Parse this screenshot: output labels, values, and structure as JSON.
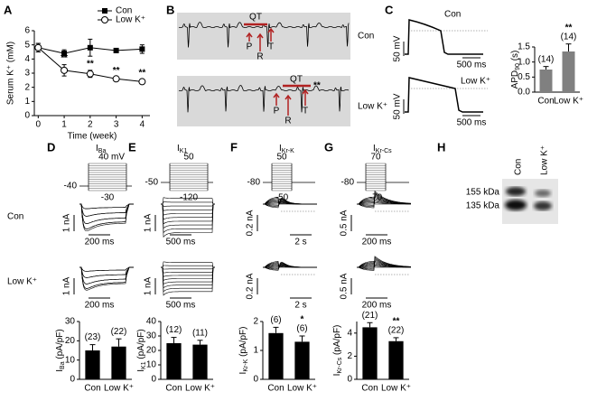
{
  "chart_data": [
    {
      "type": "line",
      "y_label": "Serum K⁺ (mM)",
      "x_label": "Time (week)",
      "x": [
        0,
        1,
        2,
        3,
        4
      ],
      "xlim": [
        -0.15,
        4.3
      ],
      "xticks": [
        0,
        1,
        2,
        3,
        4
      ],
      "ylim": [
        0,
        6
      ],
      "yticks": [
        0,
        1,
        2,
        3,
        4,
        5,
        6
      ],
      "legend": "top-right",
      "series": [
        {
          "name": "Con",
          "color": "#000000",
          "marker": "square",
          "values": [
            4.8,
            4.4,
            4.8,
            4.6,
            4.7
          ],
          "errors": [
            0.3,
            0.25,
            0.6,
            0.15,
            0.3
          ]
        },
        {
          "name": "Low K⁺",
          "color": "#000000",
          "marker": "open-circle",
          "values": [
            4.8,
            3.2,
            2.95,
            2.6,
            2.4
          ],
          "errors": [
            0.3,
            0.4,
            0.25,
            0.12,
            0.15
          ],
          "significance": [
            null,
            "**",
            "**",
            "**",
            "**"
          ]
        }
      ]
    },
    {
      "type": "bar",
      "y_label": {
        "main": "APD",
        "sub": "90",
        "unit": " (s)"
      },
      "categories": [
        "Con",
        "Low K⁺"
      ],
      "values": [
        0.75,
        1.35
      ],
      "errors": [
        0.1,
        0.25
      ],
      "n_labels": [
        "(14)",
        "(14)"
      ],
      "significance": [
        null,
        "**"
      ],
      "color": "#808080",
      "ylim": [
        0,
        1.5
      ],
      "yticks": [
        {
          "value": 0,
          "label": "0.0"
        },
        0.5,
        {
          "value": 1,
          "label": "1.0"
        },
        1.5
      ]
    },
    {
      "type": "bar",
      "y_label": {
        "main": "I",
        "sub": "Ba",
        "unit": " (pA/pF)"
      },
      "categories": [
        "Con",
        "Low K⁺"
      ],
      "values": [
        15,
        17
      ],
      "errors": [
        3,
        4
      ],
      "n_labels": [
        "(23)",
        "(22)"
      ],
      "significance": [
        null,
        null
      ],
      "color": "#000000",
      "ylim": [
        0,
        30
      ],
      "yticks": [
        0,
        10,
        20,
        30
      ]
    },
    {
      "type": "bar",
      "y_label": {
        "main": "I",
        "sub": "K1",
        "unit": " (pA/pF)"
      },
      "categories": [
        "Con",
        "Low K⁺"
      ],
      "values": [
        25,
        24
      ],
      "errors": [
        4,
        3
      ],
      "n_labels": [
        "(12)",
        "(11)"
      ],
      "significance": [
        null,
        null
      ],
      "color": "#000000",
      "ylim": [
        0,
        40
      ],
      "yticks": [
        0,
        10,
        20,
        30,
        40
      ]
    },
    {
      "type": "bar",
      "y_label": {
        "main": "I",
        "sub": "Kr-K",
        "unit": " (pA/pF)"
      },
      "categories": [
        "Con",
        "Low K⁺"
      ],
      "values": [
        1.6,
        1.3
      ],
      "errors": [
        0.2,
        0.2
      ],
      "n_labels": [
        "(6)",
        "(6)"
      ],
      "significance": [
        null,
        "*"
      ],
      "color": "#000000",
      "ylim": [
        0,
        2
      ],
      "yticks": [
        0,
        1,
        2
      ]
    },
    {
      "type": "bar",
      "y_label": {
        "main": "I",
        "sub": "Kr-Cs",
        "unit": " (pA/pF)"
      },
      "categories": [
        "Con",
        "Low K⁺"
      ],
      "values": [
        4.5,
        3.3
      ],
      "errors": [
        0.4,
        0.3
      ],
      "n_labels": [
        "(21)",
        "(22)"
      ],
      "significance": [
        null,
        "**"
      ],
      "color": "#000000",
      "ylim": [
        0,
        5
      ],
      "yticks": [
        0,
        2,
        4
      ]
    }
  ],
  "panels": {
    "A": {
      "label": "A"
    },
    "B": {
      "label": "B",
      "interval": "QT",
      "waves": [
        "P",
        "R",
        "T"
      ],
      "conditions": [
        "Con",
        "Low K⁺"
      ],
      "significance": "**"
    },
    "C": {
      "label": "C",
      "traces": [
        {
          "condition": "Con",
          "voltage_scale": "50 mV",
          "time_scale": "500 ms"
        },
        {
          "condition": "Low K⁺",
          "voltage_scale": "50 mV",
          "time_scale": "500 ms"
        }
      ]
    },
    "D": {
      "label": "D",
      "title": {
        "main": "I",
        "sub": "Ba"
      },
      "protocol": {
        "top": "40 mV",
        "hold": "-40",
        "bottom": "-30"
      },
      "conditions": [
        "Con",
        "Low K⁺"
      ],
      "scales": [
        [
          "1 nA",
          "200 ms"
        ],
        [
          "1 nA",
          "200 ms"
        ]
      ]
    },
    "E": {
      "label": "E",
      "title": {
        "main": "I",
        "sub": "K1"
      },
      "protocol": {
        "top": "50",
        "hold": "-50",
        "bottom": "-120"
      },
      "scales": [
        [
          "1 nA",
          "500 ms"
        ],
        [
          "1 nA",
          "500 ms"
        ]
      ]
    },
    "F": {
      "label": "F",
      "title": {
        "main": "I",
        "sub": "Kr-K"
      },
      "protocol": {
        "top": "50",
        "hold": "-80",
        "bottom": "-50"
      },
      "scales": [
        [
          "0.2 nA",
          "2 s"
        ],
        [
          "0.2 nA",
          "2 s"
        ]
      ]
    },
    "G": {
      "label": "G",
      "title": {
        "main": "I",
        "sub": "Kr-Cs"
      },
      "protocol": {
        "top": "70",
        "hold": "-80",
        "bottom": "-70"
      },
      "scales": [
        [
          "0.5 nA",
          "200 ms"
        ],
        [
          "0.5 nA",
          "200 ms"
        ]
      ]
    },
    "H": {
      "label": "H",
      "markers": [
        "155 kDa",
        "135 kDa"
      ],
      "lanes": [
        "Con",
        "Low K⁺"
      ]
    }
  }
}
